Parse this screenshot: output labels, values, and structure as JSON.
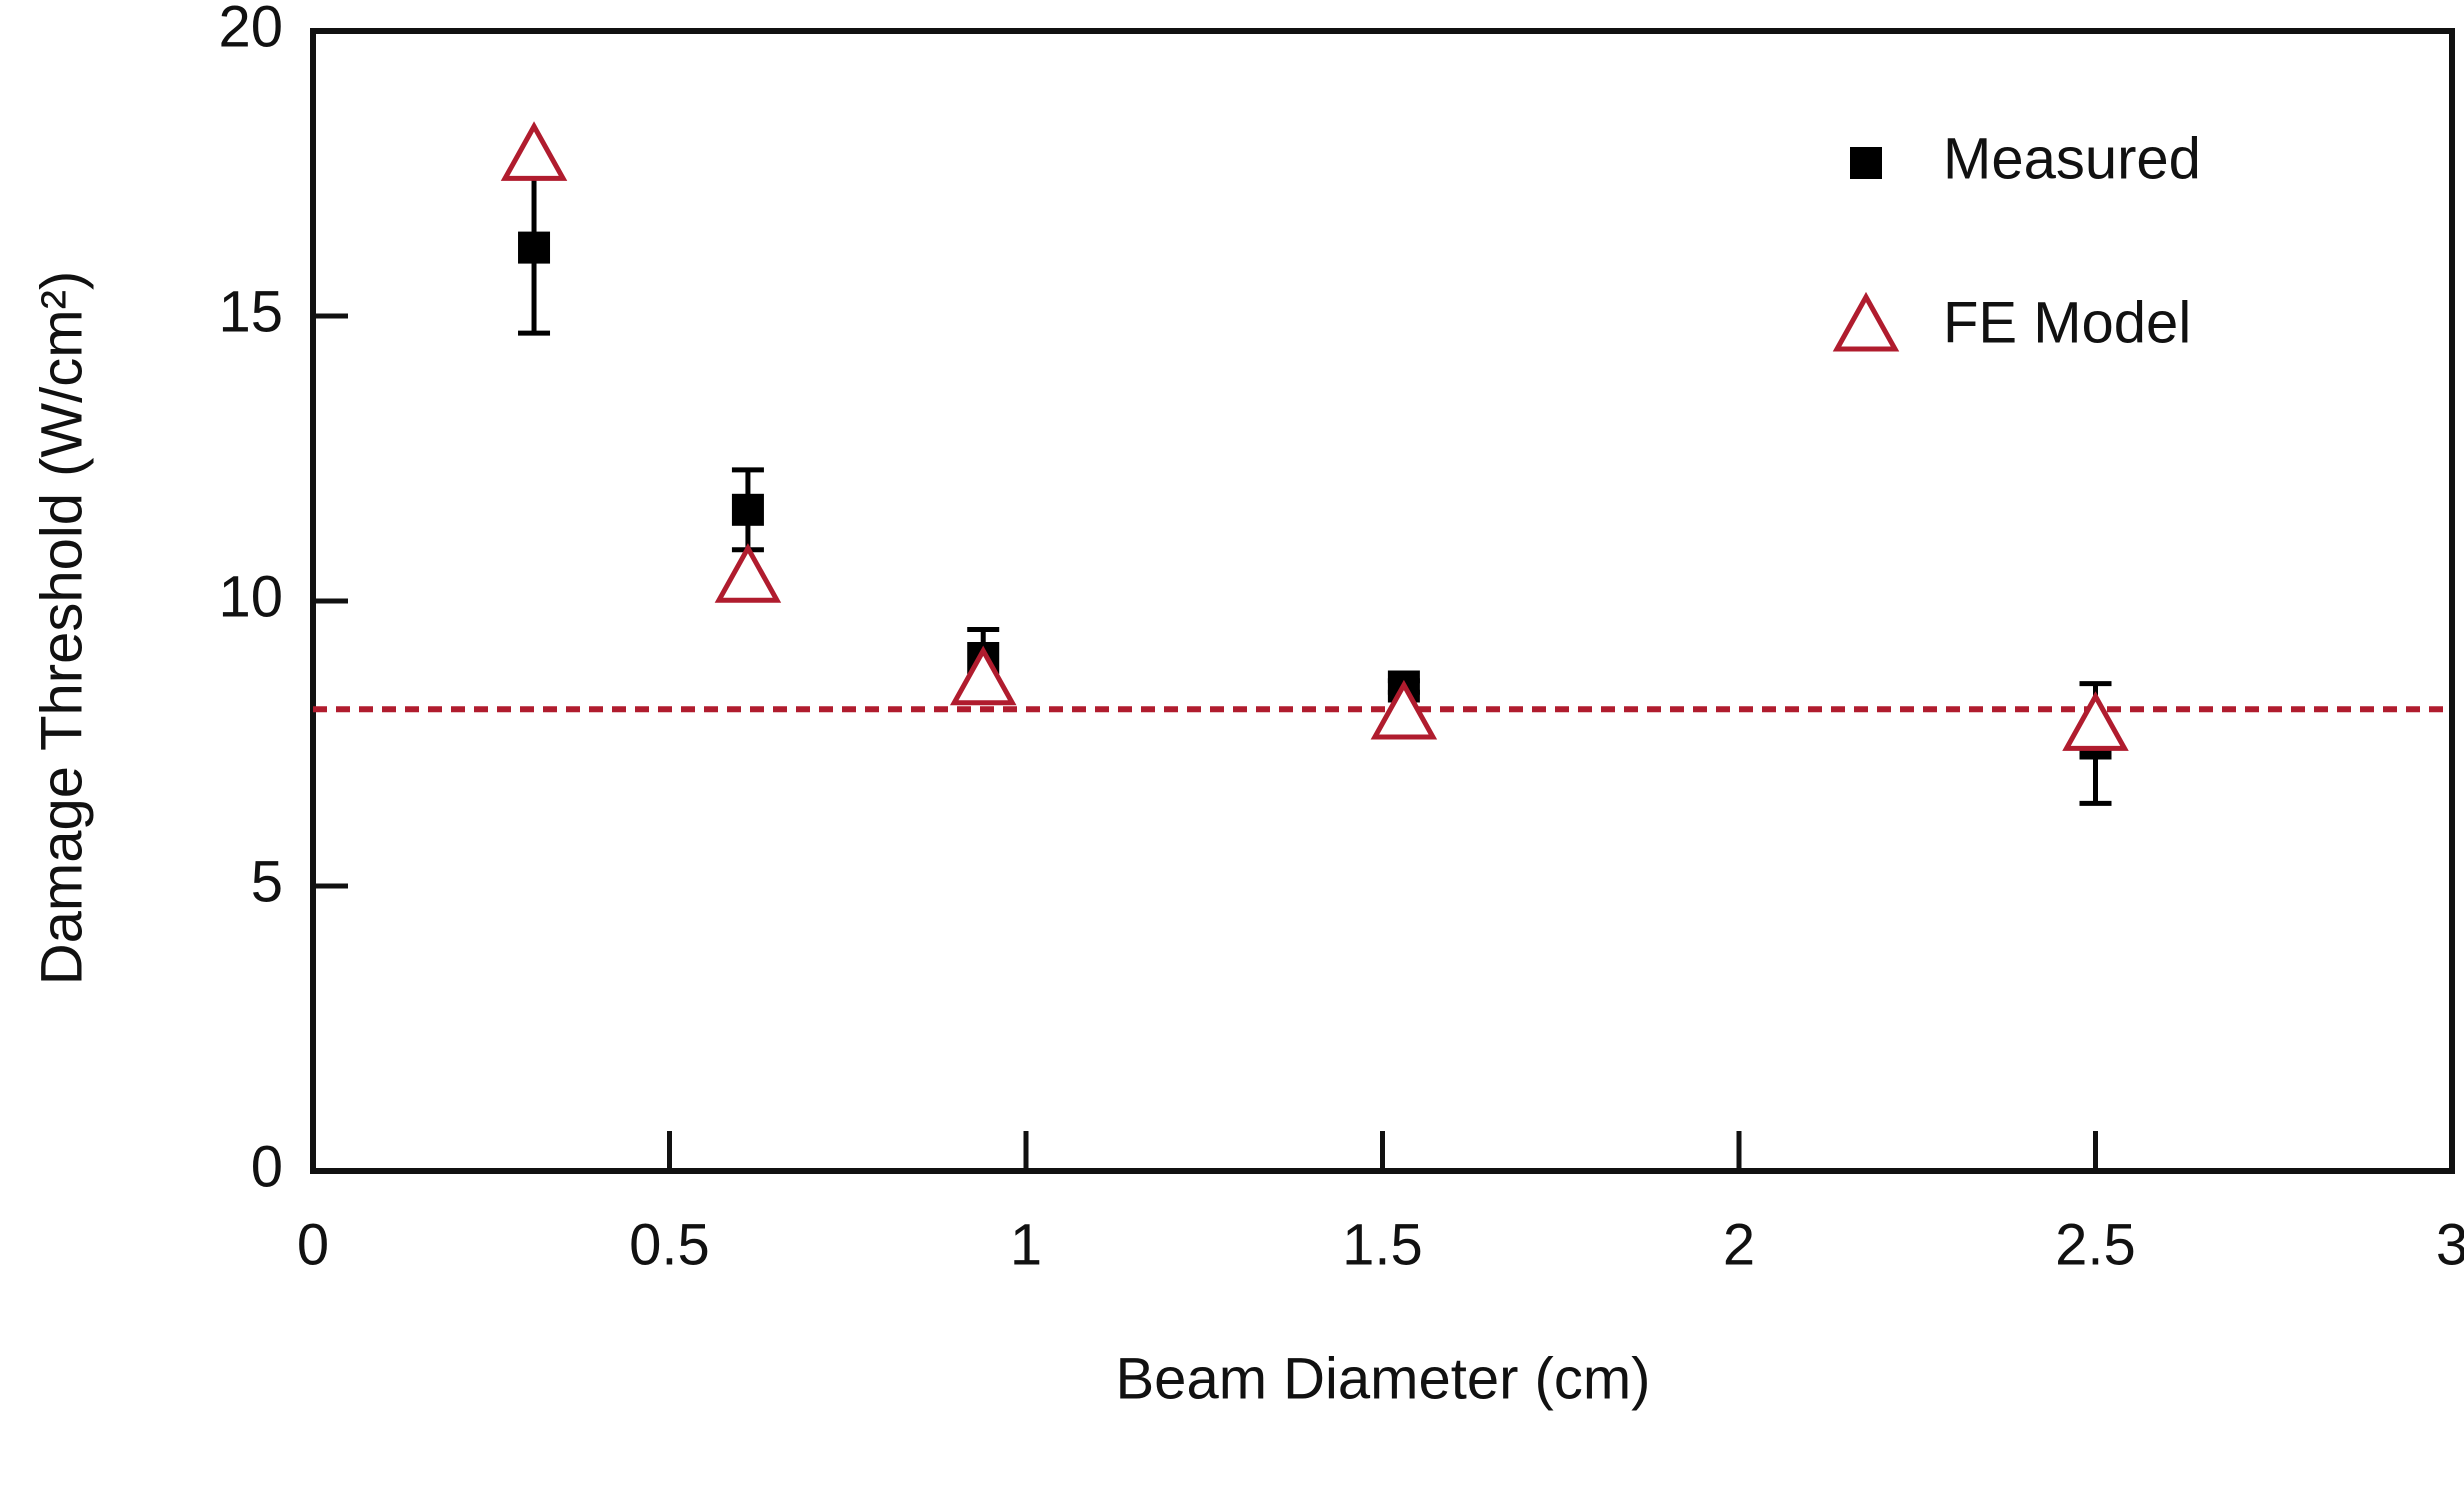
{
  "chart_data": {
    "type": "scatter",
    "x_label": "Beam Diameter (cm)",
    "y_label": "Damage Threshold (W/cm²)",
    "xlim": [
      0,
      3
    ],
    "xticks": [
      0,
      0.5,
      1,
      1.5,
      2,
      2.5,
      3
    ],
    "ylim": [
      0,
      20
    ],
    "yticks": [
      0,
      5,
      10,
      15,
      20
    ],
    "legend": "upper right",
    "series": [
      {
        "name": "Measured",
        "color": "#000000",
        "marker": "square",
        "x": [
          0.31,
          0.61,
          0.94,
          1.53,
          2.5
        ],
        "values": [
          16.2,
          11.6,
          9.0,
          8.5,
          7.5
        ],
        "errors": [
          1.5,
          0.7,
          0.5,
          0.1,
          1.05
        ]
      },
      {
        "name": "FE Model",
        "color": "#b01c2e",
        "marker": "triangle",
        "x": [
          0.31,
          0.61,
          0.94,
          1.53,
          2.5
        ],
        "values": [
          17.8,
          10.4,
          8.6,
          8.0,
          7.8
        ]
      }
    ],
    "reference_line": {
      "value": 8.1,
      "color": "#b01c2e",
      "style": "dashed"
    }
  }
}
